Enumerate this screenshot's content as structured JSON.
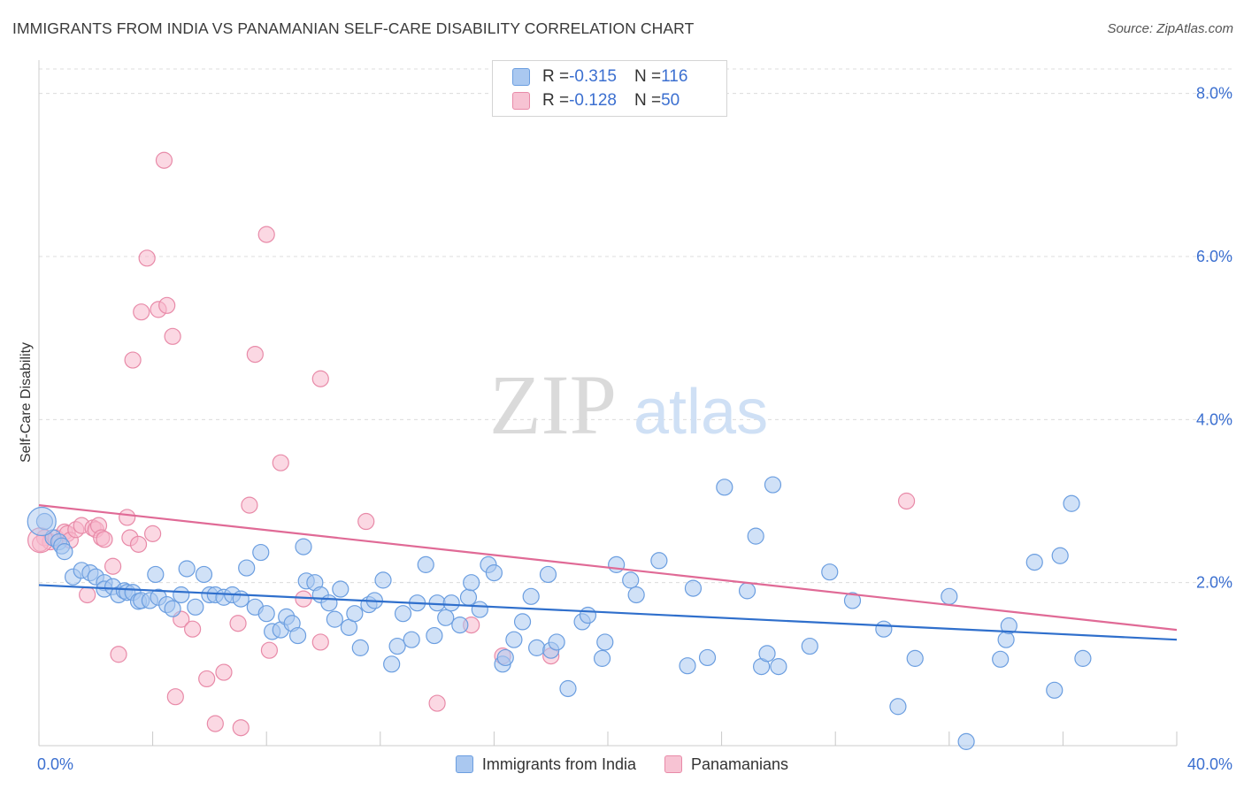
{
  "title": "IMMIGRANTS FROM INDIA VS PANAMANIAN SELF-CARE DISABILITY CORRELATION CHART",
  "source": "Source: ZipAtlas.com",
  "watermark": {
    "zip": "ZIP",
    "atlas": "atlas"
  },
  "stats": [
    {
      "r_label": "R = ",
      "r_value": "-0.315",
      "n_label": "N = ",
      "n_value": "116"
    },
    {
      "r_label": "R = ",
      "r_value": "-0.128",
      "n_label": "N = ",
      "n_value": "50"
    }
  ],
  "legend": [
    "Immigrants from India",
    "Panamanians"
  ],
  "chart_data": {
    "type": "scatter",
    "xlabel": "",
    "ylabel": "Self-Care Disability",
    "xlim": [
      0,
      40
    ],
    "ylim": [
      0,
      8.3
    ],
    "x_ticks": [
      "0.0%",
      "40.0%"
    ],
    "y_ticks": [
      {
        "value": 2,
        "label": "2.0%"
      },
      {
        "value": 4,
        "label": "4.0%"
      },
      {
        "value": 6,
        "label": "6.0%"
      },
      {
        "value": 8,
        "label": "8.0%"
      }
    ],
    "grid": "horizontal dashed",
    "colors": {
      "india_fill": "#aac8f0",
      "india_stroke": "#6b9ee0",
      "india_line": "#2f6fcc",
      "pan_fill": "#f7b8cc",
      "pan_stroke": "#e88aa8",
      "pan_line": "#e06a96",
      "tick_label": "#3b6fd0"
    },
    "series": [
      {
        "name": "Immigrants from India",
        "trend": {
          "x": [
            0,
            40
          ],
          "y": [
            1.97,
            1.3
          ]
        },
        "points": [
          [
            0.2,
            2.75
          ],
          [
            0.5,
            2.55
          ],
          [
            0.7,
            2.5
          ],
          [
            0.8,
            2.45
          ],
          [
            0.9,
            2.38
          ],
          [
            1.2,
            2.07
          ],
          [
            1.5,
            2.15
          ],
          [
            1.8,
            2.12
          ],
          [
            2.0,
            2.07
          ],
          [
            2.3,
            2.0
          ],
          [
            2.3,
            1.92
          ],
          [
            2.6,
            1.95
          ],
          [
            2.8,
            1.85
          ],
          [
            3.0,
            1.9
          ],
          [
            3.1,
            1.88
          ],
          [
            3.3,
            1.88
          ],
          [
            3.5,
            1.77
          ],
          [
            3.6,
            1.78
          ],
          [
            3.9,
            1.78
          ],
          [
            4.1,
            2.1
          ],
          [
            4.2,
            1.82
          ],
          [
            4.5,
            1.73
          ],
          [
            4.7,
            1.68
          ],
          [
            5.0,
            1.85
          ],
          [
            5.2,
            2.17
          ],
          [
            5.5,
            1.7
          ],
          [
            5.8,
            2.1
          ],
          [
            6.0,
            1.85
          ],
          [
            6.2,
            1.85
          ],
          [
            6.5,
            1.82
          ],
          [
            6.8,
            1.85
          ],
          [
            7.1,
            1.8
          ],
          [
            7.3,
            2.18
          ],
          [
            7.6,
            1.7
          ],
          [
            7.8,
            2.37
          ],
          [
            8.0,
            1.62
          ],
          [
            8.2,
            1.4
          ],
          [
            8.5,
            1.42
          ],
          [
            8.7,
            1.58
          ],
          [
            8.9,
            1.5
          ],
          [
            9.1,
            1.35
          ],
          [
            9.3,
            2.44
          ],
          [
            9.4,
            2.02
          ],
          [
            9.7,
            2.0
          ],
          [
            9.9,
            1.85
          ],
          [
            10.2,
            1.75
          ],
          [
            10.4,
            1.55
          ],
          [
            10.6,
            1.92
          ],
          [
            10.9,
            1.45
          ],
          [
            11.1,
            1.62
          ],
          [
            11.3,
            1.2
          ],
          [
            11.6,
            1.73
          ],
          [
            11.8,
            1.78
          ],
          [
            12.1,
            2.03
          ],
          [
            12.4,
            1.0
          ],
          [
            12.6,
            1.22
          ],
          [
            12.8,
            1.62
          ],
          [
            13.1,
            1.3
          ],
          [
            13.3,
            1.75
          ],
          [
            13.6,
            2.22
          ],
          [
            13.9,
            1.35
          ],
          [
            14.0,
            1.75
          ],
          [
            14.3,
            1.57
          ],
          [
            14.5,
            1.75
          ],
          [
            14.8,
            1.48
          ],
          [
            15.1,
            1.82
          ],
          [
            15.2,
            2.0
          ],
          [
            15.5,
            1.67
          ],
          [
            15.8,
            2.22
          ],
          [
            16.0,
            2.12
          ],
          [
            16.3,
            1.0
          ],
          [
            16.4,
            1.08
          ],
          [
            16.7,
            1.3
          ],
          [
            17.0,
            1.52
          ],
          [
            17.3,
            1.83
          ],
          [
            17.5,
            1.2
          ],
          [
            17.9,
            2.1
          ],
          [
            18.0,
            1.17
          ],
          [
            18.2,
            1.27
          ],
          [
            18.6,
            0.7
          ],
          [
            19.1,
            1.52
          ],
          [
            19.3,
            1.6
          ],
          [
            19.8,
            1.07
          ],
          [
            19.9,
            1.27
          ],
          [
            20.3,
            2.22
          ],
          [
            20.8,
            2.03
          ],
          [
            21.0,
            1.85
          ],
          [
            21.8,
            2.27
          ],
          [
            22.8,
            0.98
          ],
          [
            23.0,
            1.93
          ],
          [
            23.5,
            1.08
          ],
          [
            24.1,
            3.17
          ],
          [
            24.9,
            1.9
          ],
          [
            25.2,
            2.57
          ],
          [
            25.4,
            0.97
          ],
          [
            25.6,
            1.13
          ],
          [
            25.8,
            3.2
          ],
          [
            26.0,
            0.97
          ],
          [
            27.1,
            1.22
          ],
          [
            27.8,
            2.13
          ],
          [
            28.6,
            1.78
          ],
          [
            29.7,
            1.43
          ],
          [
            30.2,
            0.48
          ],
          [
            30.8,
            1.07
          ],
          [
            32.0,
            1.83
          ],
          [
            32.6,
            0.05
          ],
          [
            33.8,
            1.06
          ],
          [
            34.0,
            1.3
          ],
          [
            34.1,
            1.47
          ],
          [
            35.0,
            2.25
          ],
          [
            35.7,
            0.68
          ],
          [
            35.9,
            2.33
          ],
          [
            36.3,
            2.97
          ],
          [
            36.7,
            1.07
          ]
        ]
      },
      {
        "name": "Panamanians",
        "trend": {
          "x": [
            0,
            40
          ],
          "y": [
            2.95,
            1.42
          ]
        },
        "points": [
          [
            0.2,
            2.55
          ],
          [
            0.4,
            2.5
          ],
          [
            0.6,
            2.55
          ],
          [
            0.9,
            2.62
          ],
          [
            1.0,
            2.6
          ],
          [
            1.1,
            2.52
          ],
          [
            1.3,
            2.65
          ],
          [
            1.5,
            2.7
          ],
          [
            1.7,
            1.85
          ],
          [
            1.9,
            2.67
          ],
          [
            2.0,
            2.65
          ],
          [
            2.1,
            2.7
          ],
          [
            2.2,
            2.55
          ],
          [
            2.3,
            2.53
          ],
          [
            2.6,
            2.2
          ],
          [
            2.8,
            1.12
          ],
          [
            3.1,
            2.8
          ],
          [
            3.2,
            2.55
          ],
          [
            3.3,
            4.73
          ],
          [
            3.5,
            2.47
          ],
          [
            3.6,
            5.32
          ],
          [
            3.8,
            5.98
          ],
          [
            4.0,
            2.6
          ],
          [
            4.2,
            5.35
          ],
          [
            4.4,
            7.18
          ],
          [
            4.5,
            5.4
          ],
          [
            4.7,
            5.02
          ],
          [
            4.8,
            0.6
          ],
          [
            5.0,
            1.55
          ],
          [
            5.4,
            1.43
          ],
          [
            5.9,
            0.82
          ],
          [
            6.2,
            0.27
          ],
          [
            6.5,
            0.9
          ],
          [
            7.0,
            1.5
          ],
          [
            7.1,
            0.22
          ],
          [
            7.4,
            2.95
          ],
          [
            7.6,
            4.8
          ],
          [
            8.0,
            6.27
          ],
          [
            8.1,
            1.17
          ],
          [
            8.5,
            3.47
          ],
          [
            9.3,
            1.8
          ],
          [
            9.9,
            1.27
          ],
          [
            9.9,
            4.5
          ],
          [
            11.5,
            2.75
          ],
          [
            14.0,
            0.52
          ],
          [
            15.2,
            1.48
          ],
          [
            16.3,
            1.1
          ],
          [
            18.0,
            1.1
          ],
          [
            30.5,
            3.0
          ],
          [
            0.05,
            2.48
          ]
        ]
      }
    ]
  }
}
